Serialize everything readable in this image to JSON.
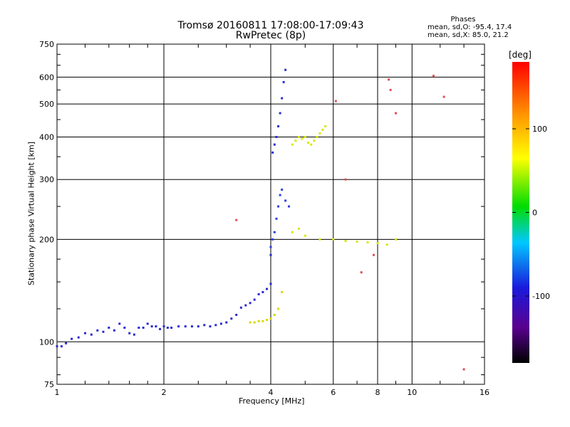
{
  "header": {
    "title_line1": "Tromsø 20160811 17:08:00-17:09:43",
    "title_line2": "RwPretec (8p)",
    "phases_title": "Phases",
    "phases_o": "mean, sd,O: -95.4, 17.4",
    "phases_x": "mean, sd,X:  85.0, 21.2"
  },
  "colorbar": {
    "title": "[deg]",
    "ticks": [
      "100",
      "0",
      "-100"
    ],
    "tick_values": [
      100,
      0,
      -100
    ],
    "range": [
      -180,
      180
    ]
  },
  "chart_data": {
    "type": "scatter",
    "xlabel": "Frequency [MHz]",
    "ylabel": "Stationary phase Virtual Height [km]",
    "x_scale": "log",
    "y_scale": "log",
    "xlim": [
      1,
      16
    ],
    "ylim": [
      75,
      750
    ],
    "x_ticks": [
      1,
      2,
      4,
      6,
      8,
      10,
      16
    ],
    "x_tick_labels": [
      "1",
      "2",
      "4",
      "6",
      "8",
      "10",
      "16"
    ],
    "y_ticks": [
      75,
      100,
      200,
      300,
      400,
      500,
      600,
      750
    ],
    "y_tick_labels": [
      "75",
      "100",
      "200",
      "300",
      "400",
      "500",
      "600",
      "750"
    ],
    "grid": true,
    "series": [
      {
        "x": [
          1.0,
          1.03,
          1.06,
          1.1,
          1.15,
          1.2,
          1.25,
          1.3,
          1.35,
          1.4,
          1.45,
          1.5,
          1.55,
          1.6,
          1.65,
          1.7,
          1.75,
          1.8,
          1.85,
          1.9,
          1.95,
          2.0,
          2.05,
          2.1,
          2.2,
          2.3,
          2.4,
          2.5,
          2.6,
          2.7,
          2.8,
          2.9,
          3.0,
          3.1,
          3.2,
          3.3,
          3.4,
          3.5,
          3.6,
          3.7,
          3.8,
          3.9,
          4.0
        ],
        "y": [
          97,
          97,
          99,
          102,
          103,
          106,
          105,
          108,
          107,
          110,
          108,
          113,
          110,
          106,
          105,
          110,
          110,
          113,
          111,
          111,
          109,
          111,
          110,
          110,
          111,
          111,
          111,
          111,
          112,
          111,
          112,
          113,
          114,
          117,
          120,
          126,
          128,
          130,
          133,
          138,
          140,
          143,
          148
        ]
      },
      {
        "x": [
          3.5,
          3.6,
          3.7,
          3.8,
          3.9,
          4.0,
          4.1,
          4.2,
          4.3
        ],
        "y": [
          114,
          114,
          115,
          115,
          116,
          117,
          120,
          125,
          140
        ]
      },
      {
        "x": [
          4.0,
          4.05,
          4.1,
          4.15,
          4.2,
          4.25,
          4.3,
          4.35,
          4.4
        ],
        "y": [
          180,
          360,
          380,
          400,
          430,
          470,
          520,
          580,
          630
        ]
      },
      {
        "x": [
          4.0,
          4.05,
          4.1,
          4.15,
          4.2,
          4.25,
          4.3,
          4.4,
          4.5
        ],
        "y": [
          190,
          200,
          210,
          230,
          250,
          270,
          280,
          260,
          250
        ]
      },
      {
        "x": [
          4.6,
          4.7,
          4.8,
          4.9,
          5.0,
          5.1,
          5.2,
          5.3,
          5.4,
          5.5,
          5.6,
          5.7
        ],
        "y": [
          380,
          390,
          400,
          395,
          400,
          385,
          380,
          390,
          400,
          410,
          420,
          430
        ]
      },
      {
        "x": [
          4.6,
          4.8,
          5.0,
          5.5,
          6.0,
          6.5,
          7.0,
          7.5,
          8.0,
          8.5,
          9.0
        ],
        "y": [
          210,
          215,
          205,
          200,
          200,
          198,
          197,
          196,
          195,
          193,
          200
        ]
      },
      {
        "x": [
          3.2,
          6.1,
          6.5,
          7.2,
          7.8,
          8.6,
          8.7,
          9.0,
          11.5,
          12.3,
          14.0
        ],
        "y": [
          228,
          510,
          300,
          160,
          180,
          590,
          550,
          470,
          605,
          525,
          83
        ]
      }
    ]
  }
}
